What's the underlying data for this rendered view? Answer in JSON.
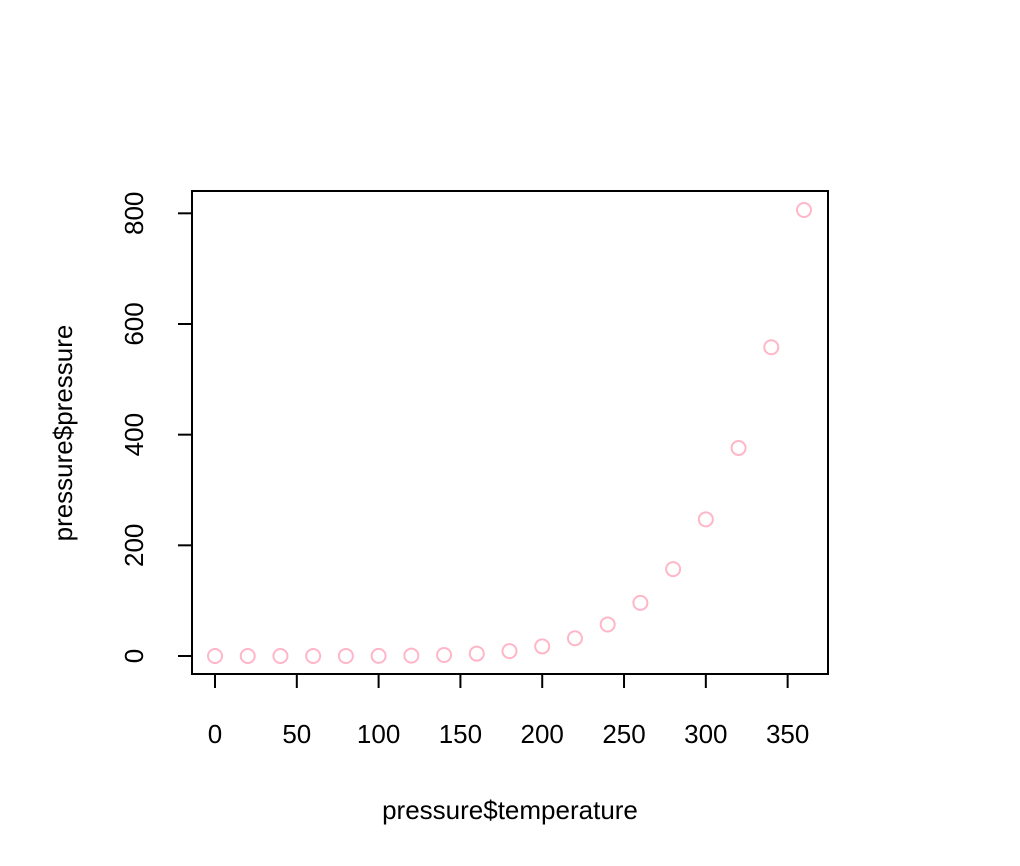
{
  "chart_data": {
    "type": "scatter",
    "title": "",
    "xlabel": "pressure$temperature",
    "ylabel": "pressure$pressure",
    "x": [
      0,
      20,
      40,
      60,
      80,
      100,
      120,
      140,
      160,
      180,
      200,
      220,
      240,
      260,
      280,
      300,
      320,
      340,
      360
    ],
    "y": [
      0.0002,
      0.0012,
      0.006,
      0.03,
      0.09,
      0.27,
      0.75,
      1.85,
      4.2,
      8.8,
      17.3,
      32.1,
      57,
      96,
      157,
      247,
      376,
      558,
      806
    ],
    "xlim": [
      0,
      360
    ],
    "ylim": [
      0,
      806
    ],
    "xticks": [
      0,
      50,
      100,
      150,
      200,
      250,
      300,
      350
    ],
    "yticks": [
      0,
      200,
      400,
      600,
      800
    ],
    "xtick_labels": [
      "0",
      "50",
      "100",
      "150",
      "200",
      "250",
      "300",
      "350"
    ],
    "ytick_labels": [
      "0",
      "200",
      "400",
      "600",
      "800"
    ],
    "marker": "open-circle",
    "marker_color": "#ffb6c8",
    "grid": false,
    "legend": "none"
  }
}
